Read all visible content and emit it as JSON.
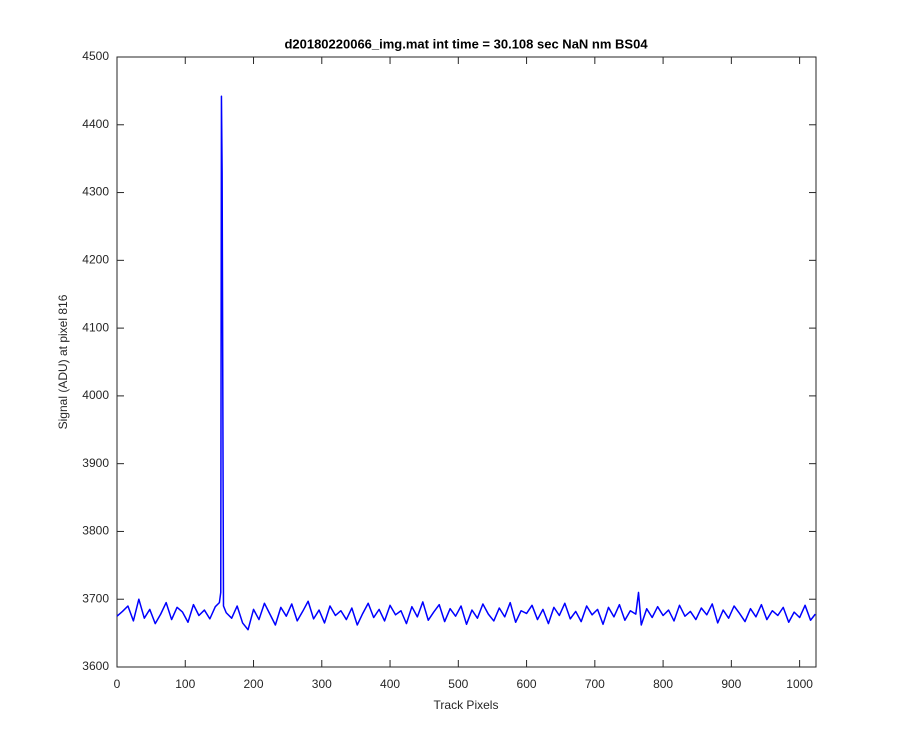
{
  "chart_data": {
    "type": "line",
    "title": "d20180220066_img.mat int time = 30.108 sec  NaN nm BS04",
    "xlabel": "Track Pixels",
    "ylabel": "Signal (ADU) at pixel 816",
    "x": [
      0,
      8,
      16,
      24,
      32,
      40,
      48,
      56,
      64,
      72,
      80,
      88,
      96,
      104,
      112,
      120,
      128,
      136,
      144,
      150,
      152,
      153,
      154,
      156,
      160,
      168,
      176,
      184,
      192,
      200,
      208,
      216,
      224,
      232,
      240,
      248,
      256,
      264,
      272,
      280,
      288,
      296,
      304,
      312,
      320,
      328,
      336,
      344,
      352,
      360,
      368,
      376,
      384,
      392,
      400,
      408,
      416,
      424,
      432,
      440,
      448,
      456,
      464,
      472,
      480,
      488,
      496,
      504,
      512,
      520,
      528,
      536,
      544,
      552,
      560,
      568,
      576,
      584,
      592,
      600,
      608,
      616,
      624,
      632,
      640,
      648,
      656,
      664,
      672,
      680,
      688,
      696,
      704,
      712,
      720,
      728,
      736,
      744,
      752,
      760,
      764,
      768,
      776,
      784,
      792,
      800,
      808,
      816,
      824,
      832,
      840,
      848,
      856,
      864,
      872,
      880,
      888,
      896,
      904,
      912,
      920,
      928,
      936,
      944,
      952,
      960,
      968,
      976,
      984,
      992,
      1000,
      1008,
      1016,
      1023
    ],
    "series": [
      {
        "color": "#0000ff",
        "values": [
          3675,
          3682,
          3690,
          3668,
          3700,
          3672,
          3685,
          3664,
          3678,
          3695,
          3670,
          3688,
          3681,
          3666,
          3692,
          3676,
          3684,
          3671,
          3689,
          3695,
          3710,
          4442,
          4330,
          3690,
          3680,
          3672,
          3690,
          3665,
          3655,
          3685,
          3670,
          3694,
          3678,
          3662,
          3688,
          3675,
          3693,
          3668,
          3682,
          3697,
          3671,
          3684,
          3665,
          3690,
          3676,
          3683,
          3670,
          3687,
          3662,
          3679,
          3694,
          3673,
          3685,
          3668,
          3691,
          3677,
          3683,
          3664,
          3689,
          3674,
          3696,
          3669,
          3681,
          3692,
          3667,
          3686,
          3675,
          3690,
          3663,
          3684,
          3672,
          3693,
          3678,
          3668,
          3687,
          3674,
          3695,
          3666,
          3683,
          3679,
          3691,
          3670,
          3685,
          3664,
          3688,
          3676,
          3694,
          3671,
          3682,
          3667,
          3690,
          3677,
          3685,
          3663,
          3688,
          3674,
          3692,
          3669,
          3683,
          3678,
          3710,
          3662,
          3686,
          3673,
          3689,
          3676,
          3684,
          3668,
          3691,
          3675,
          3682,
          3670,
          3687,
          3677,
          3693,
          3665,
          3684,
          3672,
          3690,
          3679,
          3667,
          3686,
          3674,
          3692,
          3670,
          3683,
          3676,
          3688,
          3666,
          3681,
          3673,
          3691,
          3669,
          3678
        ]
      }
    ],
    "xlim": [
      0,
      1024
    ],
    "ylim": [
      3600,
      4500
    ],
    "xticks": [
      0,
      100,
      200,
      300,
      400,
      500,
      600,
      700,
      800,
      900,
      1000
    ],
    "yticks": [
      3600,
      3700,
      3800,
      3900,
      4000,
      4100,
      4200,
      4300,
      4400,
      4500
    ],
    "grid": false
  }
}
